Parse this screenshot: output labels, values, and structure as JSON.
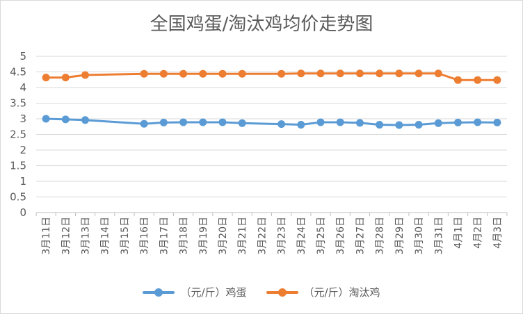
{
  "chart_data": {
    "type": "line",
    "title": "全国鸡蛋/淘汰鸡均价走势图",
    "categories": [
      "3月11日",
      "3月12日",
      "3月13日",
      "3月14日",
      "3月15日",
      "3月16日",
      "3月17日",
      "3月18日",
      "3月19日",
      "3月20日",
      "3月21日",
      "3月22日",
      "3月23日",
      "3月24日",
      "3月25日",
      "3月26日",
      "3月27日",
      "3月28日",
      "3月29日",
      "3月30日",
      "3月31日",
      "4月1日",
      "4月2日",
      "4月3日"
    ],
    "y_ticks": [
      "0",
      "0.5",
      "1",
      "1.5",
      "2",
      "2.5",
      "3",
      "3.5",
      "4",
      "4.5",
      "5"
    ],
    "ylim": [
      0,
      5
    ],
    "grid": true,
    "legend_position": "bottom",
    "series": [
      {
        "name": "（元/斤）鸡蛋",
        "color": "#5b9bd5",
        "values": [
          3.0,
          2.98,
          2.96,
          null,
          null,
          2.84,
          2.88,
          2.89,
          2.89,
          2.89,
          2.86,
          null,
          2.83,
          2.81,
          2.89,
          2.89,
          2.87,
          2.81,
          2.8,
          2.81,
          2.86,
          2.88,
          2.89,
          2.88
        ]
      },
      {
        "name": "（元/斤）淘汰鸡",
        "color": "#ed7d31",
        "values": [
          4.32,
          4.32,
          4.4,
          null,
          null,
          4.44,
          4.44,
          4.44,
          4.44,
          4.44,
          4.44,
          null,
          4.44,
          4.45,
          4.45,
          4.45,
          4.45,
          4.45,
          4.45,
          4.45,
          4.45,
          4.24,
          4.24,
          4.24
        ]
      }
    ]
  }
}
